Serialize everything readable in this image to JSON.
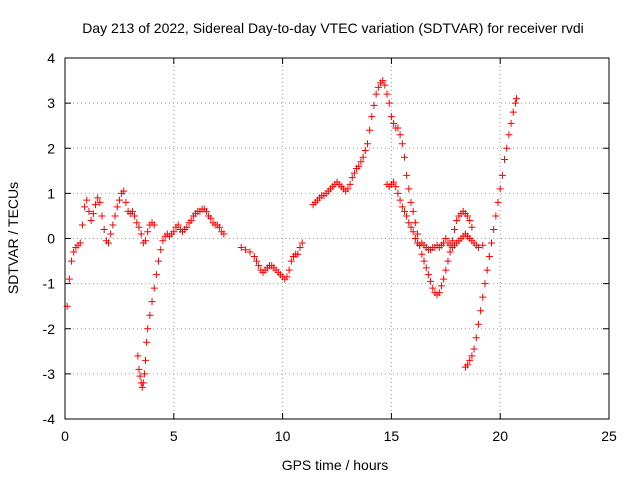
{
  "chart_data": {
    "type": "scatter",
    "title": "Day 213 of 2022, Sidereal Day-to-day VTEC variation (SDTVAR) for receiver rvdi",
    "xlabel": "GPS time / hours",
    "ylabel": "SDTVAR / TECUs",
    "xlim": [
      0,
      25
    ],
    "ylim": [
      -4,
      4
    ],
    "xticks": [
      0,
      5,
      10,
      15,
      20,
      25
    ],
    "yticks": [
      -4,
      -3,
      -2,
      -1,
      0,
      1,
      2,
      3,
      4
    ],
    "x_tick_labels": [
      "0",
      "5",
      "10",
      "15",
      "20",
      "25"
    ],
    "y_tick_labels": [
      "-4",
      "-3",
      "-2",
      "-1",
      "0",
      "1",
      "2",
      "3",
      "4"
    ],
    "grid": true,
    "marker": "plus",
    "color": "#ff0000",
    "series": [
      {
        "points": [
          [
            0.1,
            -1.5
          ],
          [
            0.2,
            -0.9
          ],
          [
            0.3,
            -0.5
          ],
          [
            0.4,
            -0.3
          ],
          [
            0.5,
            -0.2
          ],
          [
            0.6,
            -0.15
          ],
          [
            0.7,
            -0.1
          ],
          [
            0.8,
            0.3
          ],
          [
            0.9,
            0.7
          ],
          [
            1.0,
            0.85
          ],
          [
            1.1,
            0.6
          ],
          [
            1.2,
            0.4
          ],
          [
            1.3,
            0.55
          ],
          [
            1.4,
            0.75
          ],
          [
            1.5,
            0.9
          ],
          [
            1.6,
            0.8
          ],
          [
            1.7,
            0.5
          ],
          [
            1.8,
            0.2
          ],
          [
            1.9,
            -0.05
          ],
          [
            2.0,
            -0.1
          ],
          [
            2.1,
            0.1
          ],
          [
            2.2,
            0.3
          ],
          [
            2.3,
            0.5
          ],
          [
            2.4,
            0.7
          ],
          [
            2.5,
            0.85
          ],
          [
            2.6,
            1.0
          ],
          [
            2.7,
            1.05
          ],
          [
            2.8,
            0.8
          ],
          [
            2.9,
            0.6
          ],
          [
            3.0,
            0.55
          ],
          [
            3.1,
            0.6
          ],
          [
            3.2,
            0.5
          ],
          [
            3.3,
            0.35
          ],
          [
            3.4,
            0.25
          ],
          [
            3.5,
            0.1
          ],
          [
            3.6,
            -0.1
          ],
          [
            3.7,
            -0.05
          ],
          [
            3.8,
            0.15
          ],
          [
            3.9,
            0.3
          ],
          [
            4.0,
            0.35
          ],
          [
            4.1,
            0.3
          ]
        ]
      },
      {
        "points": [
          [
            3.35,
            -2.6
          ],
          [
            3.4,
            -2.9
          ],
          [
            3.45,
            -3.05
          ],
          [
            3.5,
            -3.2
          ],
          [
            3.55,
            -3.3
          ],
          [
            3.6,
            -3.2
          ],
          [
            3.65,
            -3.0
          ],
          [
            3.7,
            -2.7
          ],
          [
            3.75,
            -2.3
          ],
          [
            3.8,
            -2.0
          ],
          [
            3.9,
            -1.7
          ],
          [
            4.0,
            -1.4
          ],
          [
            4.1,
            -1.1
          ],
          [
            4.2,
            -0.8
          ],
          [
            4.3,
            -0.5
          ],
          [
            4.4,
            -0.25
          ],
          [
            4.5,
            -0.05
          ],
          [
            4.6,
            0.05
          ],
          [
            4.7,
            0.1
          ],
          [
            4.8,
            0.05
          ],
          [
            4.9,
            0.1
          ],
          [
            5.0,
            0.15
          ],
          [
            5.1,
            0.25
          ],
          [
            5.2,
            0.3
          ],
          [
            5.3,
            0.2
          ],
          [
            5.4,
            0.15
          ],
          [
            5.5,
            0.2
          ],
          [
            5.6,
            0.25
          ],
          [
            5.7,
            0.35
          ],
          [
            5.8,
            0.4
          ],
          [
            5.9,
            0.5
          ],
          [
            6.0,
            0.55
          ],
          [
            6.1,
            0.6
          ],
          [
            6.2,
            0.6
          ],
          [
            6.3,
            0.65
          ],
          [
            6.4,
            0.65
          ],
          [
            6.5,
            0.6
          ],
          [
            6.6,
            0.5
          ],
          [
            6.7,
            0.45
          ],
          [
            6.8,
            0.35
          ],
          [
            6.9,
            0.3
          ],
          [
            7.0,
            0.3
          ],
          [
            7.1,
            0.25
          ],
          [
            7.2,
            0.15
          ],
          [
            7.3,
            0.1
          ]
        ]
      },
      {
        "points": [
          [
            8.1,
            -0.2
          ],
          [
            8.3,
            -0.25
          ],
          [
            8.5,
            -0.3
          ],
          [
            8.7,
            -0.4
          ],
          [
            8.8,
            -0.5
          ],
          [
            8.9,
            -0.6
          ],
          [
            9.0,
            -0.7
          ],
          [
            9.1,
            -0.75
          ],
          [
            9.2,
            -0.7
          ],
          [
            9.3,
            -0.65
          ],
          [
            9.4,
            -0.6
          ],
          [
            9.5,
            -0.6
          ],
          [
            9.6,
            -0.65
          ],
          [
            9.7,
            -0.7
          ],
          [
            9.8,
            -0.75
          ],
          [
            9.9,
            -0.8
          ],
          [
            10.0,
            -0.85
          ],
          [
            10.1,
            -0.9
          ],
          [
            10.2,
            -0.85
          ],
          [
            10.3,
            -0.7
          ],
          [
            10.4,
            -0.5
          ],
          [
            10.5,
            -0.4
          ],
          [
            10.6,
            -0.35
          ],
          [
            10.7,
            -0.35
          ],
          [
            10.8,
            -0.2
          ],
          [
            10.9,
            -0.1
          ]
        ]
      },
      {
        "points": [
          [
            11.4,
            0.75
          ],
          [
            11.5,
            0.8
          ],
          [
            11.6,
            0.85
          ],
          [
            11.7,
            0.9
          ],
          [
            11.8,
            0.95
          ],
          [
            11.9,
            0.95
          ],
          [
            12.0,
            1.0
          ],
          [
            12.1,
            1.05
          ],
          [
            12.2,
            1.1
          ],
          [
            12.3,
            1.15
          ],
          [
            12.4,
            1.2
          ],
          [
            12.5,
            1.25
          ],
          [
            12.6,
            1.2
          ],
          [
            12.7,
            1.15
          ],
          [
            12.8,
            1.1
          ],
          [
            12.9,
            1.05
          ],
          [
            13.0,
            1.1
          ],
          [
            13.1,
            1.2
          ],
          [
            13.2,
            1.35
          ],
          [
            13.3,
            1.45
          ],
          [
            13.4,
            1.55
          ],
          [
            13.5,
            1.6
          ],
          [
            13.6,
            1.7
          ],
          [
            13.7,
            1.8
          ],
          [
            13.8,
            1.95
          ],
          [
            13.9,
            2.1
          ],
          [
            14.0,
            2.4
          ],
          [
            14.1,
            2.7
          ],
          [
            14.2,
            2.95
          ],
          [
            14.3,
            3.2
          ],
          [
            14.4,
            3.35
          ],
          [
            14.5,
            3.45
          ],
          [
            14.6,
            3.5
          ],
          [
            14.7,
            3.4
          ],
          [
            14.8,
            3.2
          ],
          [
            14.9,
            3.0
          ],
          [
            15.0,
            2.7
          ],
          [
            15.1,
            2.55
          ],
          [
            15.2,
            2.45
          ],
          [
            15.3,
            2.45
          ],
          [
            15.4,
            2.3
          ],
          [
            15.5,
            2.1
          ],
          [
            15.6,
            1.8
          ],
          [
            15.7,
            1.4
          ],
          [
            15.8,
            1.1
          ],
          [
            15.9,
            0.8
          ],
          [
            16.0,
            0.6
          ],
          [
            16.1,
            0.35
          ],
          [
            16.2,
            0.1
          ],
          [
            16.3,
            -0.15
          ],
          [
            16.4,
            -0.35
          ],
          [
            16.5,
            -0.5
          ],
          [
            16.6,
            -0.65
          ],
          [
            16.7,
            -0.8
          ],
          [
            16.8,
            -0.95
          ],
          [
            16.9,
            -1.1
          ],
          [
            17.0,
            -1.2
          ],
          [
            17.1,
            -1.25
          ],
          [
            17.2,
            -1.2
          ],
          [
            17.3,
            -1.05
          ],
          [
            17.4,
            -0.9
          ],
          [
            17.5,
            -0.7
          ],
          [
            17.6,
            -0.5
          ],
          [
            17.7,
            -0.3
          ],
          [
            17.8,
            -0.05
          ],
          [
            17.9,
            0.2
          ],
          [
            18.0,
            0.4
          ],
          [
            18.1,
            0.5
          ],
          [
            18.2,
            0.55
          ],
          [
            18.3,
            0.6
          ],
          [
            18.4,
            0.55
          ],
          [
            18.5,
            0.5
          ],
          [
            18.6,
            0.4
          ],
          [
            18.7,
            0.25
          ]
        ]
      },
      {
        "points": [
          [
            14.8,
            1.2
          ],
          [
            14.9,
            1.15
          ],
          [
            15.0,
            1.2
          ],
          [
            15.1,
            1.25
          ],
          [
            15.2,
            1.15
          ],
          [
            15.3,
            1.0
          ],
          [
            15.4,
            0.85
          ],
          [
            15.5,
            0.7
          ],
          [
            15.6,
            0.6
          ],
          [
            15.7,
            0.5
          ],
          [
            15.8,
            0.35
          ],
          [
            15.9,
            0.25
          ],
          [
            16.0,
            0.15
          ],
          [
            16.1,
            0.0
          ],
          [
            16.2,
            -0.1
          ],
          [
            16.3,
            -0.15
          ],
          [
            16.4,
            -0.1
          ],
          [
            16.5,
            -0.15
          ],
          [
            16.6,
            -0.2
          ],
          [
            16.7,
            -0.25
          ],
          [
            16.8,
            -0.25
          ],
          [
            16.9,
            -0.2
          ],
          [
            17.0,
            -0.2
          ],
          [
            17.1,
            -0.15
          ],
          [
            17.2,
            -0.2
          ],
          [
            17.3,
            -0.15
          ],
          [
            17.4,
            -0.1
          ],
          [
            17.5,
            0.0
          ],
          [
            17.6,
            -0.1
          ],
          [
            17.7,
            -0.15
          ],
          [
            17.8,
            -0.2
          ],
          [
            17.9,
            -0.15
          ],
          [
            18.0,
            -0.1
          ],
          [
            18.1,
            -0.05
          ],
          [
            18.2,
            0.0
          ],
          [
            18.3,
            0.05
          ],
          [
            18.4,
            0.1
          ],
          [
            18.5,
            0.05
          ],
          [
            18.6,
            0.0
          ],
          [
            18.7,
            -0.05
          ],
          [
            18.8,
            -0.1
          ],
          [
            18.9,
            -0.15
          ],
          [
            19.0,
            -0.2
          ],
          [
            19.2,
            -0.15
          ]
        ]
      },
      {
        "points": [
          [
            18.4,
            -2.85
          ],
          [
            18.5,
            -2.8
          ],
          [
            18.6,
            -2.7
          ],
          [
            18.7,
            -2.6
          ],
          [
            18.8,
            -2.45
          ],
          [
            18.9,
            -2.2
          ],
          [
            19.0,
            -1.9
          ],
          [
            19.1,
            -1.6
          ],
          [
            19.2,
            -1.3
          ],
          [
            19.3,
            -1.0
          ],
          [
            19.4,
            -0.7
          ],
          [
            19.5,
            -0.4
          ],
          [
            19.6,
            -0.1
          ],
          [
            19.7,
            0.2
          ],
          [
            19.8,
            0.5
          ],
          [
            19.9,
            0.8
          ],
          [
            20.0,
            1.1
          ],
          [
            20.1,
            1.4
          ],
          [
            20.2,
            1.75
          ],
          [
            20.3,
            2.0
          ],
          [
            20.4,
            2.3
          ],
          [
            20.5,
            2.55
          ],
          [
            20.6,
            2.8
          ],
          [
            20.7,
            3.0
          ],
          [
            20.75,
            3.1
          ]
        ]
      }
    ]
  }
}
